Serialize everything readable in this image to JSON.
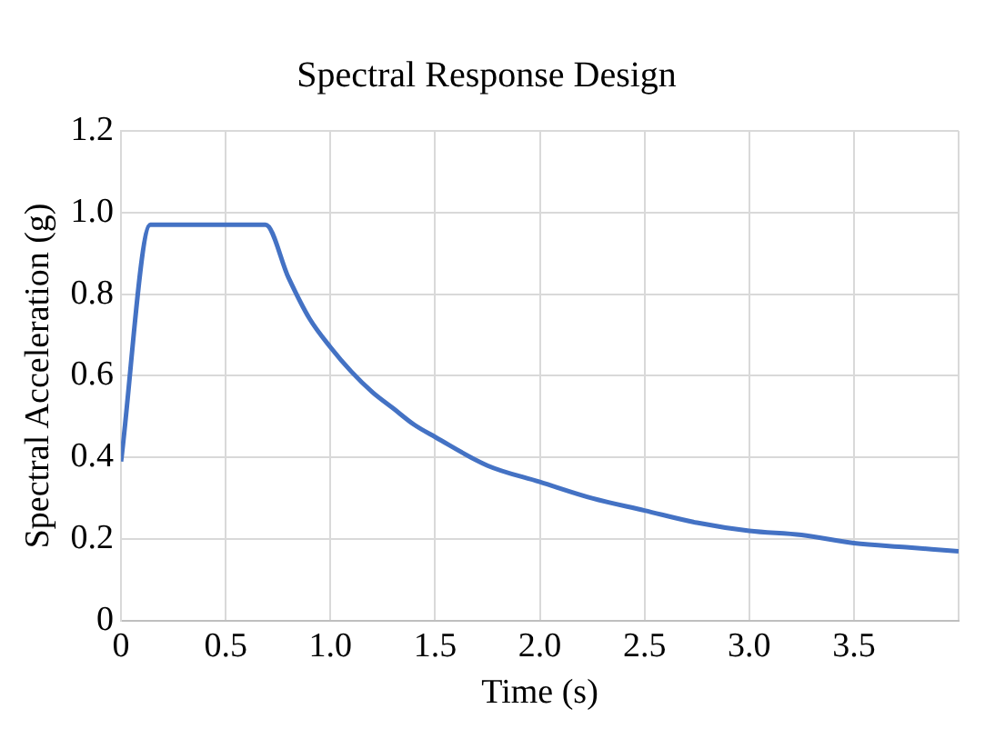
{
  "chart_data": {
    "type": "line",
    "title": "Spectral Response Design",
    "xlabel": "Time (s)",
    "ylabel": "Spectral Acceleration (g)",
    "x": [
      0,
      0.14,
      0.69,
      0.8,
      0.9,
      1.0,
      1.1,
      1.2,
      1.3,
      1.4,
      1.5,
      1.75,
      2.0,
      2.25,
      2.5,
      2.75,
      3.0,
      3.25,
      3.5,
      3.75,
      4.0
    ],
    "series": [
      {
        "color": "#4472c4",
        "values": [
          0.39,
          0.97,
          0.97,
          0.84,
          0.74,
          0.67,
          0.61,
          0.56,
          0.52,
          0.48,
          0.45,
          0.38,
          0.34,
          0.3,
          0.27,
          0.24,
          0.22,
          0.21,
          0.19,
          0.18,
          0.17
        ]
      }
    ],
    "xlim": [
      0,
      4
    ],
    "xticks": [
      0,
      0.5,
      {
        "value": 1,
        "label": "1.0"
      },
      1.5,
      {
        "value": 2,
        "label": "2.0"
      },
      2.5,
      {
        "value": 3,
        "label": "3.0"
      },
      3.5,
      {
        "value": 4,
        "label": null
      }
    ],
    "ylim": [
      0,
      1.2
    ],
    "yticks": [
      0,
      0.2,
      0.4,
      0.6,
      0.8,
      {
        "value": 1,
        "label": "1.0"
      },
      1.2
    ],
    "grid": true,
    "legend": false,
    "marker": "none",
    "line_style": "solid"
  }
}
